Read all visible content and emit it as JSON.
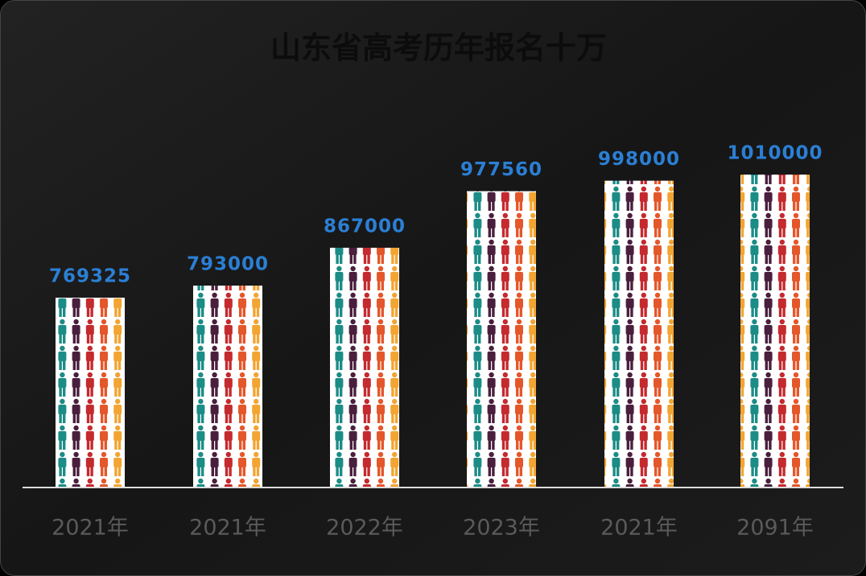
{
  "chart_data": {
    "type": "bar",
    "title": "山东省高考历年报名十万",
    "categories": [
      "2021年",
      "2021年",
      "2022年",
      "2023年",
      "2021年",
      "2091年"
    ],
    "values": [
      769325,
      793000,
      867000,
      977560,
      998000,
      1010000
    ],
    "colors": [
      "#4a1f3d",
      "#c42a2e",
      "#e4572b",
      "#f2a532",
      "#1c8c86"
    ]
  }
}
